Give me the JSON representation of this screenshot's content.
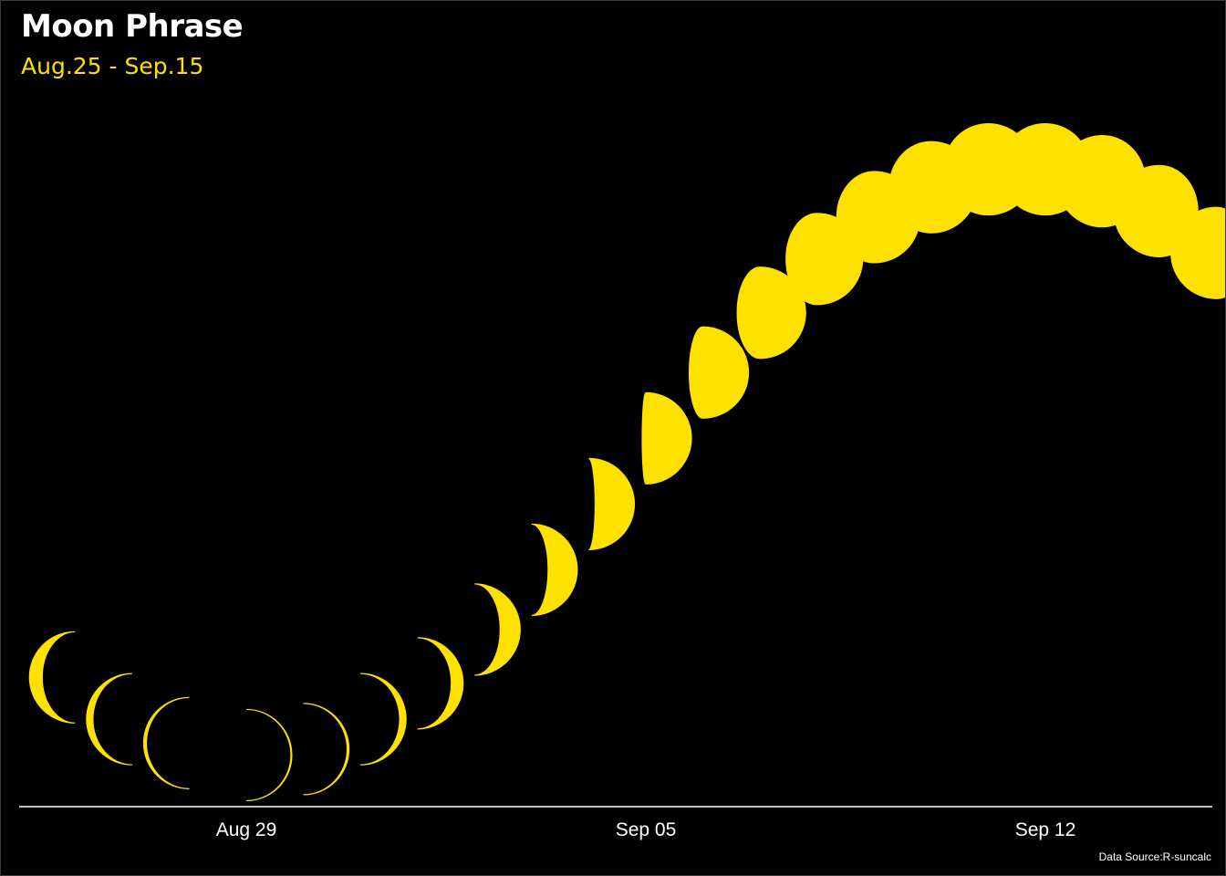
{
  "header": {
    "title": "Moon Phrase",
    "subtitle": "Aug.25 - Sep.15"
  },
  "caption": "Data Source:R-suncalc",
  "colors": {
    "background": "#000000",
    "moon": "#FFE100",
    "axis": "#FFFFFF",
    "title": "#FFFFFF",
    "subtitle": "#FFE100"
  },
  "chart_data": {
    "type": "scatter",
    "mark": "moon-phase-glyph",
    "x_unit": "date",
    "ylabel": "",
    "xlabel": "",
    "ylim": [
      0,
      1
    ],
    "grid": false,
    "x_ticks": [
      {
        "date": "2019-08-29",
        "label": "Aug 29"
      },
      {
        "date": "2019-09-05",
        "label": "Sep 05"
      },
      {
        "date": "2019-09-12",
        "label": "Sep 12"
      }
    ],
    "points": [
      {
        "date": "2019-08-26",
        "illumination": 0.14,
        "waxing": false
      },
      {
        "date": "2019-08-27",
        "illumination": 0.07,
        "waxing": false
      },
      {
        "date": "2019-08-28",
        "illumination": 0.03,
        "waxing": false
      },
      {
        "date": "2019-08-29",
        "illumination": 0.01,
        "waxing": true
      },
      {
        "date": "2019-08-30",
        "illumination": 0.02,
        "waxing": true
      },
      {
        "date": "2019-08-31",
        "illumination": 0.07,
        "waxing": true
      },
      {
        "date": "2019-09-01",
        "illumination": 0.13,
        "waxing": true
      },
      {
        "date": "2019-09-02",
        "illumination": 0.22,
        "waxing": true
      },
      {
        "date": "2019-09-03",
        "illumination": 0.32,
        "waxing": true
      },
      {
        "date": "2019-09-04",
        "illumination": 0.43,
        "waxing": true
      },
      {
        "date": "2019-09-05",
        "illumination": 0.54,
        "waxing": true
      },
      {
        "date": "2019-09-06",
        "illumination": 0.65,
        "waxing": true
      },
      {
        "date": "2019-09-07",
        "illumination": 0.75,
        "waxing": true
      },
      {
        "date": "2019-09-08",
        "illumination": 0.84,
        "waxing": true
      },
      {
        "date": "2019-09-09",
        "illumination": 0.91,
        "waxing": true
      },
      {
        "date": "2019-09-10",
        "illumination": 0.96,
        "waxing": true
      },
      {
        "date": "2019-09-11",
        "illumination": 0.99,
        "waxing": true
      },
      {
        "date": "2019-09-12",
        "illumination": 0.99,
        "waxing": false
      },
      {
        "date": "2019-09-13",
        "illumination": 0.97,
        "waxing": false
      },
      {
        "date": "2019-09-14",
        "illumination": 0.92,
        "waxing": false
      },
      {
        "date": "2019-09-15",
        "illumination": 0.85,
        "waxing": false
      }
    ]
  }
}
